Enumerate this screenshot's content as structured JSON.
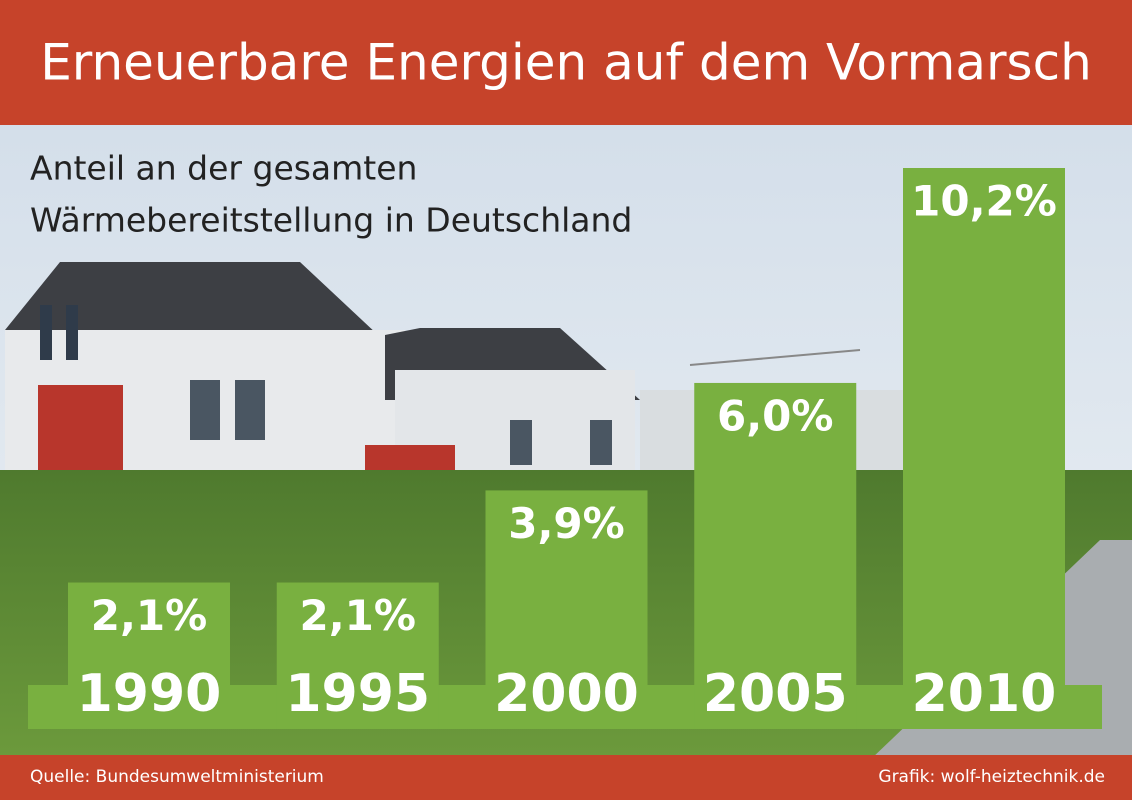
{
  "chart_data": {
    "type": "bar",
    "title": "Erneuerbare Energien auf dem Vormarsch",
    "subtitle": [
      "Anteil an der gesamten",
      "Wärmebereitstellung in Deutschland"
    ],
    "categories": [
      "1990",
      "1995",
      "2000",
      "2005",
      "2010"
    ],
    "values": [
      2.1,
      2.1,
      3.9,
      6.0,
      10.2
    ],
    "value_labels": [
      "2,1%",
      "2,1%",
      "3,9%",
      "6,0%",
      "10,2%"
    ],
    "color": "#79b040",
    "source": "Quelle: Bundesumweltministerium",
    "credit": "Grafik: wolf-heiztechnik.de"
  }
}
